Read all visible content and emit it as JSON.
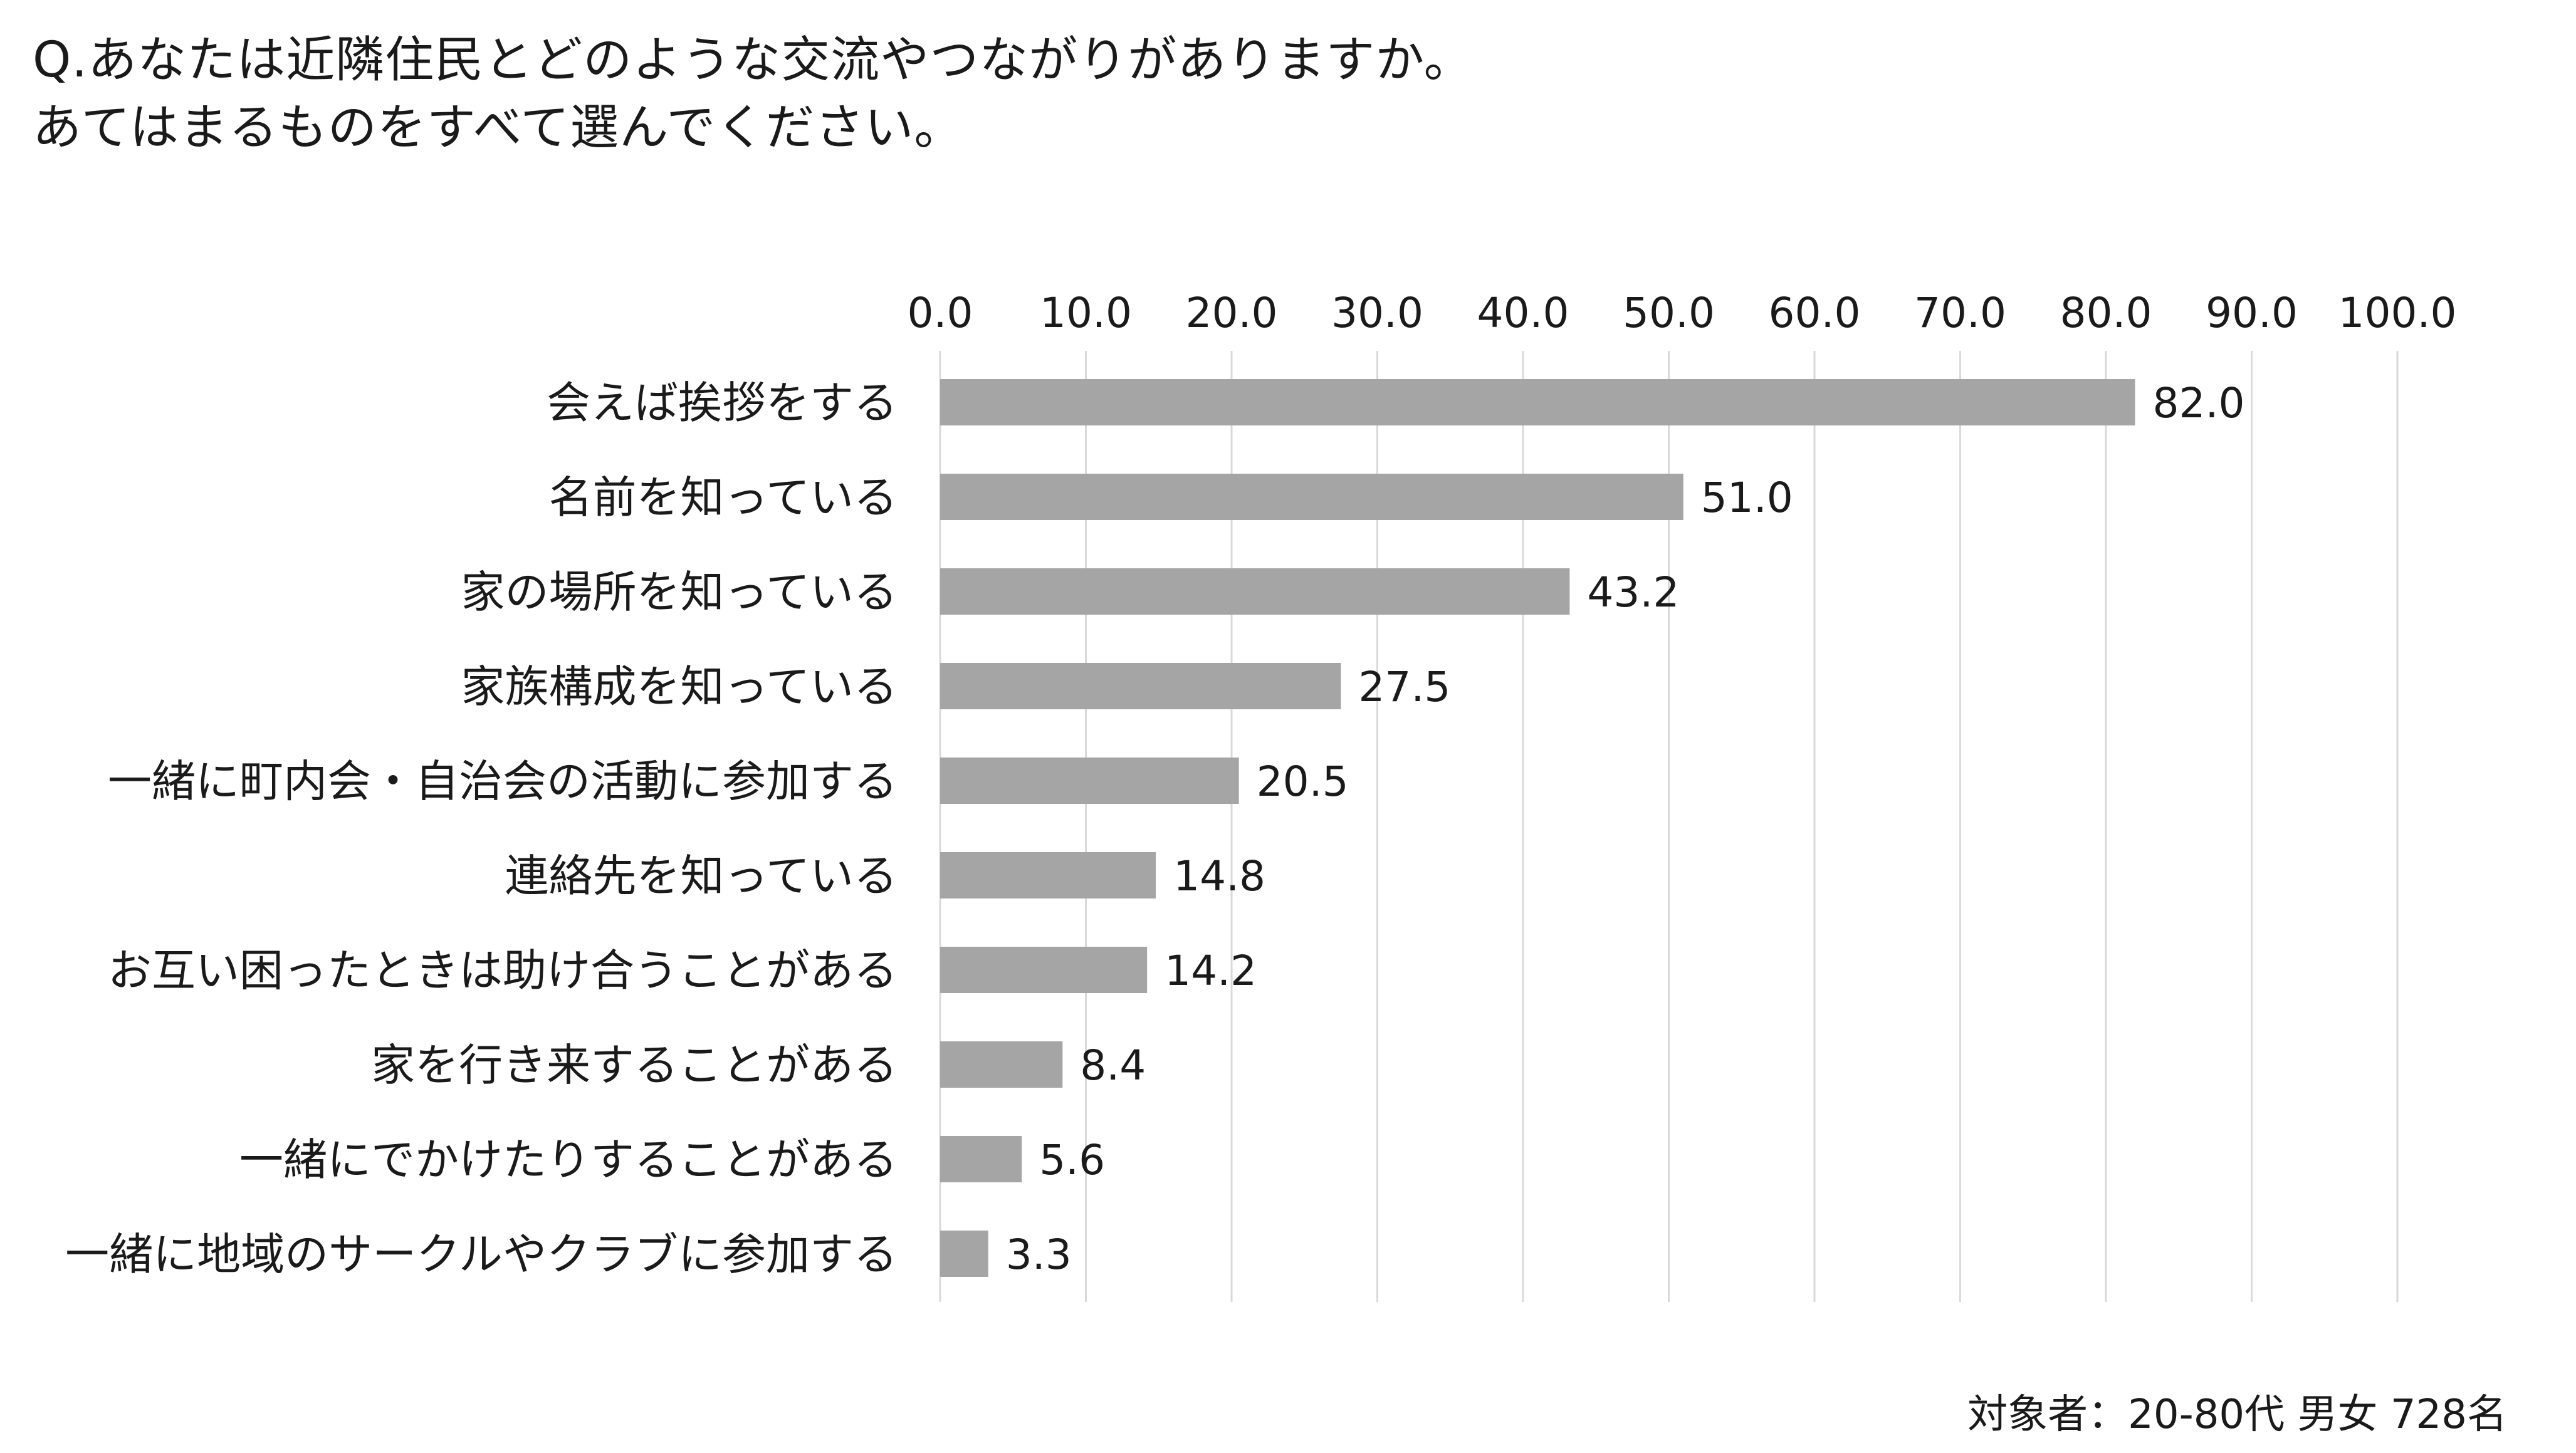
{
  "question": {
    "line1": "Q.あなたは近隣住民とどのような交流やつながりがありますか。",
    "line2": "あてはまるものをすべて選んでください。"
  },
  "note": "対象者：20-80代 男女 728名",
  "colors": {
    "bar": "#a5a5a5",
    "grid": "#d9d9d9",
    "text": "#1a1a1a"
  },
  "chart_data": {
    "type": "bar",
    "orientation": "horizontal",
    "categories": [
      "会えば挨拶をする",
      "名前を知っている",
      "家の場所を知っている",
      "家族構成を知っている",
      "一緒に町内会・自治会の活動に参加する",
      "連絡先を知っている",
      "お互い困ったときは助け合うことがある",
      "家を行き来することがある",
      "一緒にでかけたりすることがある",
      "一緒に地域のサークルやクラブに参加する"
    ],
    "values": [
      82.0,
      51.0,
      43.2,
      27.5,
      20.5,
      14.8,
      14.2,
      8.4,
      5.6,
      3.3
    ],
    "xlim": [
      0,
      100
    ],
    "xticks": [
      0,
      10,
      20,
      30,
      40,
      50,
      60,
      70,
      80,
      90,
      100
    ],
    "tick_decimals": 1,
    "value_decimals": 1,
    "axis_position": "top",
    "grid": true,
    "data_labels": true
  }
}
